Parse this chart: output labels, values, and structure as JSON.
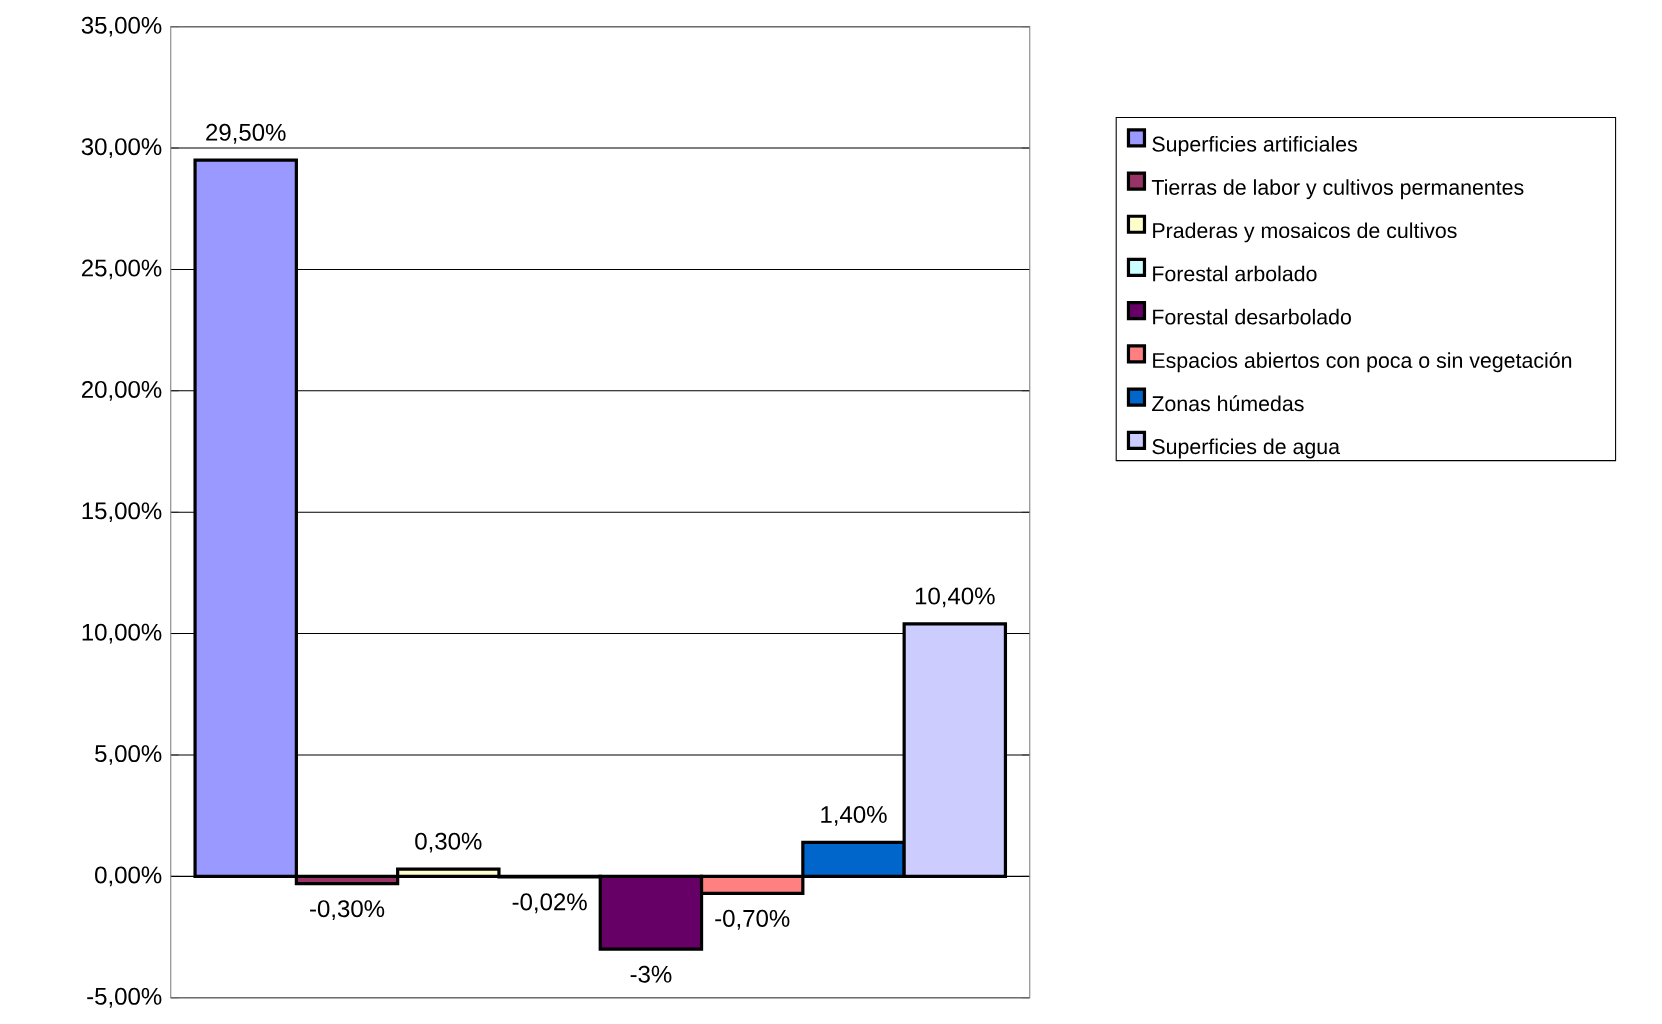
{
  "chart_data": {
    "type": "bar",
    "categories": [
      null
    ],
    "series": [
      {
        "name": "Superficies artificiales",
        "color": "#9999ff",
        "values": [
          29.5
        ],
        "value_labels": [
          "29,50%"
        ]
      },
      {
        "name": "Tierras de labor y cultivos permanentes",
        "color": "#993366",
        "values": [
          -0.3
        ],
        "value_labels": [
          "-0,30%"
        ]
      },
      {
        "name": "Praderas y mosaicos de cultivos",
        "color": "#ffffcc",
        "values": [
          0.3
        ],
        "value_labels": [
          "0,30%"
        ]
      },
      {
        "name": "Forestal arbolado",
        "color": "#ccffff",
        "values": [
          -0.02
        ],
        "value_labels": [
          "-0,02%"
        ]
      },
      {
        "name": "Forestal desarbolado",
        "color": "#660066",
        "values": [
          -3
        ],
        "value_labels": [
          "-3%"
        ]
      },
      {
        "name": "Espacios abiertos con poca o sin vegetación",
        "color": "#ff8080",
        "values": [
          -0.7
        ],
        "value_labels": [
          "-0,70%"
        ]
      },
      {
        "name": "Zonas húmedas",
        "color": "#0066cc",
        "values": [
          1.4
        ],
        "value_labels": [
          "1,40%"
        ]
      },
      {
        "name": "Superficies de agua",
        "color": "#ccccff",
        "values": [
          10.4
        ],
        "value_labels": [
          "10,40%"
        ]
      }
    ],
    "ylim": [
      -5,
      35
    ],
    "yticks": [
      {
        "value": -5,
        "label": "-5,00%"
      },
      {
        "value": 0,
        "label": "0,00%"
      },
      {
        "value": 5,
        "label": "5,00%"
      },
      {
        "value": 10,
        "label": "10,00%"
      },
      {
        "value": 15,
        "label": "15,00%"
      },
      {
        "value": 20,
        "label": "20,00%"
      },
      {
        "value": 25,
        "label": "25,00%"
      },
      {
        "value": 30,
        "label": "30,00%"
      },
      {
        "value": 35,
        "label": "35,00%"
      }
    ],
    "grid": "y",
    "legend": "right"
  }
}
